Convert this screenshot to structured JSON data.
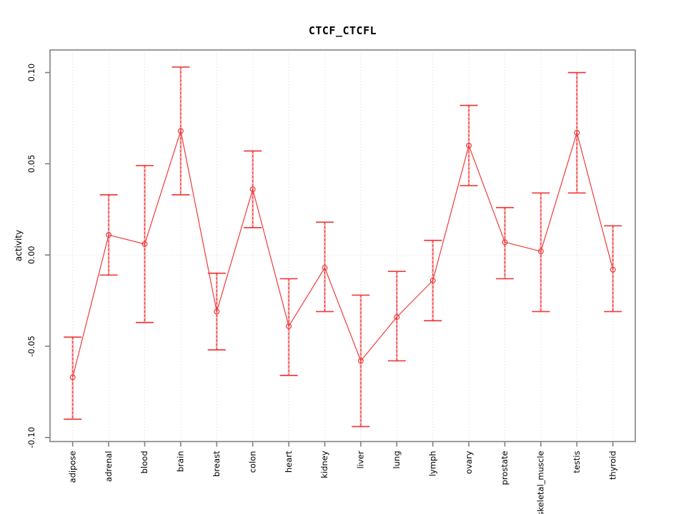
{
  "window": {
    "background": "#ffffff"
  },
  "chart_data": {
    "type": "line",
    "title": "CTCF_CTCFL",
    "xlabel": "",
    "ylabel": "activity",
    "ylim": [
      -0.1,
      0.1
    ],
    "yticks": [
      -0.1,
      -0.05,
      0.0,
      0.05,
      0.1
    ],
    "ytick_labels": [
      "-0.10",
      "-0.05",
      "0.00",
      "0.05",
      "0.10"
    ],
    "grid": "dotted vertical gridline at each category; dotted horizontal line at y=0",
    "legend_position": "none",
    "marker": "open-circle",
    "line_style": "solid",
    "error_bar_style": "dashed vertical with flat caps over pale solid band",
    "categories": [
      "adipose",
      "adrenal",
      "blood",
      "brain",
      "breast",
      "colon",
      "heart",
      "kidney",
      "liver",
      "lung",
      "lymph",
      "ovary",
      "prostate",
      "skeletal_muscle",
      "testis",
      "thyroid"
    ],
    "series": [
      {
        "name": "CTCF_CTCFL activity",
        "values": [
          -0.067,
          0.011,
          0.006,
          0.068,
          -0.031,
          0.036,
          -0.039,
          -0.007,
          -0.058,
          -0.034,
          -0.014,
          0.06,
          0.007,
          0.002,
          0.067,
          -0.008
        ],
        "ci_upper": [
          -0.045,
          0.033,
          0.049,
          0.103,
          -0.01,
          0.057,
          -0.013,
          0.018,
          -0.022,
          -0.009,
          0.008,
          0.082,
          0.026,
          0.034,
          0.1,
          0.016
        ],
        "ci_lower": [
          -0.09,
          -0.011,
          -0.037,
          0.033,
          -0.052,
          0.015,
          -0.066,
          -0.031,
          -0.094,
          -0.058,
          -0.036,
          0.038,
          -0.013,
          -0.031,
          0.034,
          -0.031
        ]
      }
    ],
    "colors": {
      "series_red": "#ee3b3b",
      "error_band_pale": "#f6a9a9",
      "gridline": "#dcdcdc",
      "axis_box": "#808080",
      "text": "#000000",
      "background": "#ffffff"
    }
  }
}
